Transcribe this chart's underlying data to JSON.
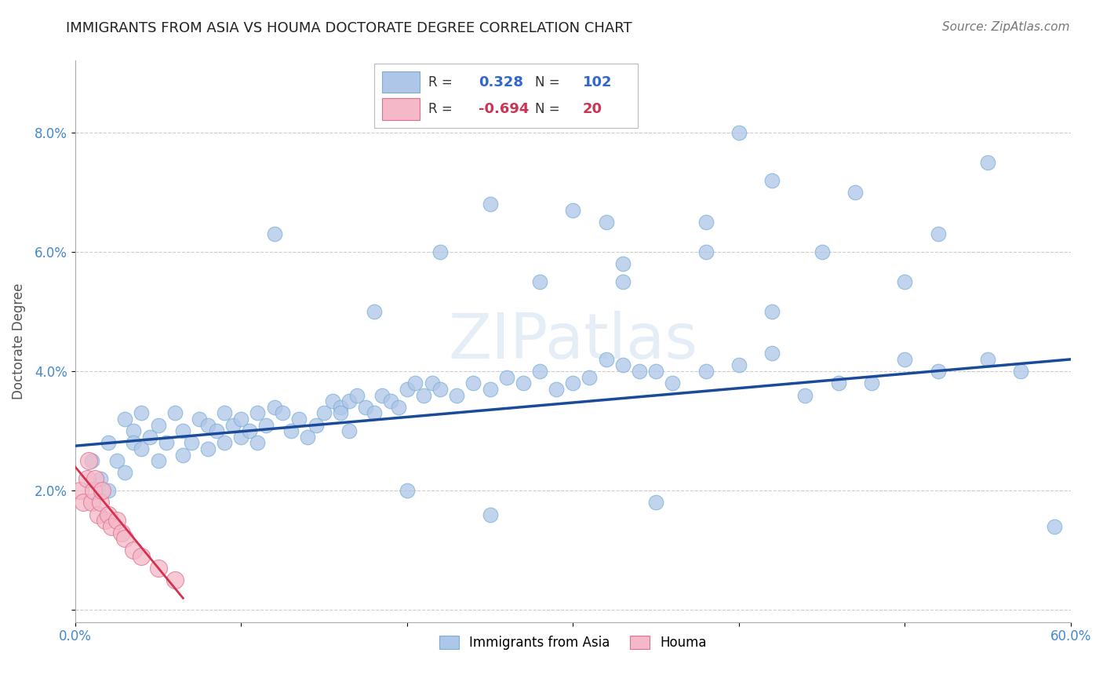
{
  "title": "IMMIGRANTS FROM ASIA VS HOUMA DOCTORATE DEGREE CORRELATION CHART",
  "source": "Source: ZipAtlas.com",
  "ylabel": "Doctorate Degree",
  "xlabel": "",
  "watermark": "ZIPatlas",
  "legend_blue_r": "0.328",
  "legend_blue_n": "102",
  "legend_pink_r": "-0.694",
  "legend_pink_n": "20",
  "legend_blue_label": "Immigrants from Asia",
  "legend_pink_label": "Houma",
  "xlim": [
    0.0,
    0.6
  ],
  "ylim": [
    -0.002,
    0.092
  ],
  "xticks": [
    0.0,
    0.1,
    0.2,
    0.3,
    0.4,
    0.5,
    0.6
  ],
  "xticklabels": [
    "0.0%",
    "",
    "",
    "",
    "",
    "",
    "60.0%"
  ],
  "yticks": [
    0.0,
    0.02,
    0.04,
    0.06,
    0.08
  ],
  "yticklabels": [
    "",
    "2.0%",
    "4.0%",
    "6.0%",
    "8.0%"
  ],
  "blue_color": "#aec6e8",
  "blue_edge": "#7aafd4",
  "blue_line_color": "#1a4a9a",
  "pink_color": "#f4b8c8",
  "pink_edge": "#e07090",
  "pink_line_color": "#d43050",
  "blue_scatter_x": [
    0.01,
    0.015,
    0.02,
    0.02,
    0.025,
    0.03,
    0.03,
    0.035,
    0.035,
    0.04,
    0.04,
    0.045,
    0.05,
    0.05,
    0.055,
    0.06,
    0.065,
    0.065,
    0.07,
    0.075,
    0.08,
    0.08,
    0.085,
    0.09,
    0.09,
    0.095,
    0.1,
    0.1,
    0.105,
    0.11,
    0.11,
    0.115,
    0.12,
    0.125,
    0.13,
    0.135,
    0.14,
    0.145,
    0.15,
    0.155,
    0.16,
    0.16,
    0.165,
    0.165,
    0.17,
    0.175,
    0.18,
    0.185,
    0.19,
    0.195,
    0.2,
    0.205,
    0.21,
    0.215,
    0.22,
    0.23,
    0.24,
    0.25,
    0.26,
    0.27,
    0.28,
    0.29,
    0.3,
    0.31,
    0.32,
    0.33,
    0.34,
    0.35,
    0.36,
    0.38,
    0.4,
    0.42,
    0.44,
    0.46,
    0.48,
    0.5,
    0.52,
    0.55,
    0.57,
    0.59,
    0.12,
    0.18,
    0.22,
    0.28,
    0.33,
    0.38,
    0.42,
    0.47,
    0.52,
    0.55,
    0.25,
    0.32,
    0.4,
    0.45,
    0.5,
    0.38,
    0.3,
    0.42,
    0.33,
    0.2,
    0.25,
    0.35
  ],
  "blue_scatter_y": [
    0.025,
    0.022,
    0.028,
    0.02,
    0.025,
    0.032,
    0.023,
    0.03,
    0.028,
    0.033,
    0.027,
    0.029,
    0.031,
    0.025,
    0.028,
    0.033,
    0.026,
    0.03,
    0.028,
    0.032,
    0.031,
    0.027,
    0.03,
    0.033,
    0.028,
    0.031,
    0.032,
    0.029,
    0.03,
    0.033,
    0.028,
    0.031,
    0.034,
    0.033,
    0.03,
    0.032,
    0.029,
    0.031,
    0.033,
    0.035,
    0.034,
    0.033,
    0.035,
    0.03,
    0.036,
    0.034,
    0.033,
    0.036,
    0.035,
    0.034,
    0.037,
    0.038,
    0.036,
    0.038,
    0.037,
    0.036,
    0.038,
    0.037,
    0.039,
    0.038,
    0.04,
    0.037,
    0.038,
    0.039,
    0.042,
    0.041,
    0.04,
    0.04,
    0.038,
    0.04,
    0.041,
    0.043,
    0.036,
    0.038,
    0.038,
    0.042,
    0.04,
    0.042,
    0.04,
    0.014,
    0.063,
    0.05,
    0.06,
    0.055,
    0.058,
    0.065,
    0.072,
    0.07,
    0.063,
    0.075,
    0.068,
    0.065,
    0.08,
    0.06,
    0.055,
    0.06,
    0.067,
    0.05,
    0.055,
    0.02,
    0.016,
    0.018
  ],
  "pink_scatter_x": [
    0.003,
    0.005,
    0.007,
    0.008,
    0.01,
    0.011,
    0.012,
    0.014,
    0.015,
    0.016,
    0.018,
    0.02,
    0.022,
    0.025,
    0.028,
    0.03,
    0.035,
    0.04,
    0.05,
    0.06
  ],
  "pink_scatter_y": [
    0.02,
    0.018,
    0.022,
    0.025,
    0.018,
    0.02,
    0.022,
    0.016,
    0.018,
    0.02,
    0.015,
    0.016,
    0.014,
    0.015,
    0.013,
    0.012,
    0.01,
    0.009,
    0.007,
    0.005
  ],
  "blue_line_x": [
    0.0,
    0.6
  ],
  "blue_line_y": [
    0.0275,
    0.042
  ],
  "pink_line_x": [
    0.0,
    0.065
  ],
  "pink_line_y": [
    0.024,
    0.002
  ],
  "grid_color": "#cccccc",
  "bg_color": "#ffffff",
  "title_fontsize": 13,
  "source_fontsize": 11,
  "tick_fontsize": 12,
  "ylabel_fontsize": 12
}
